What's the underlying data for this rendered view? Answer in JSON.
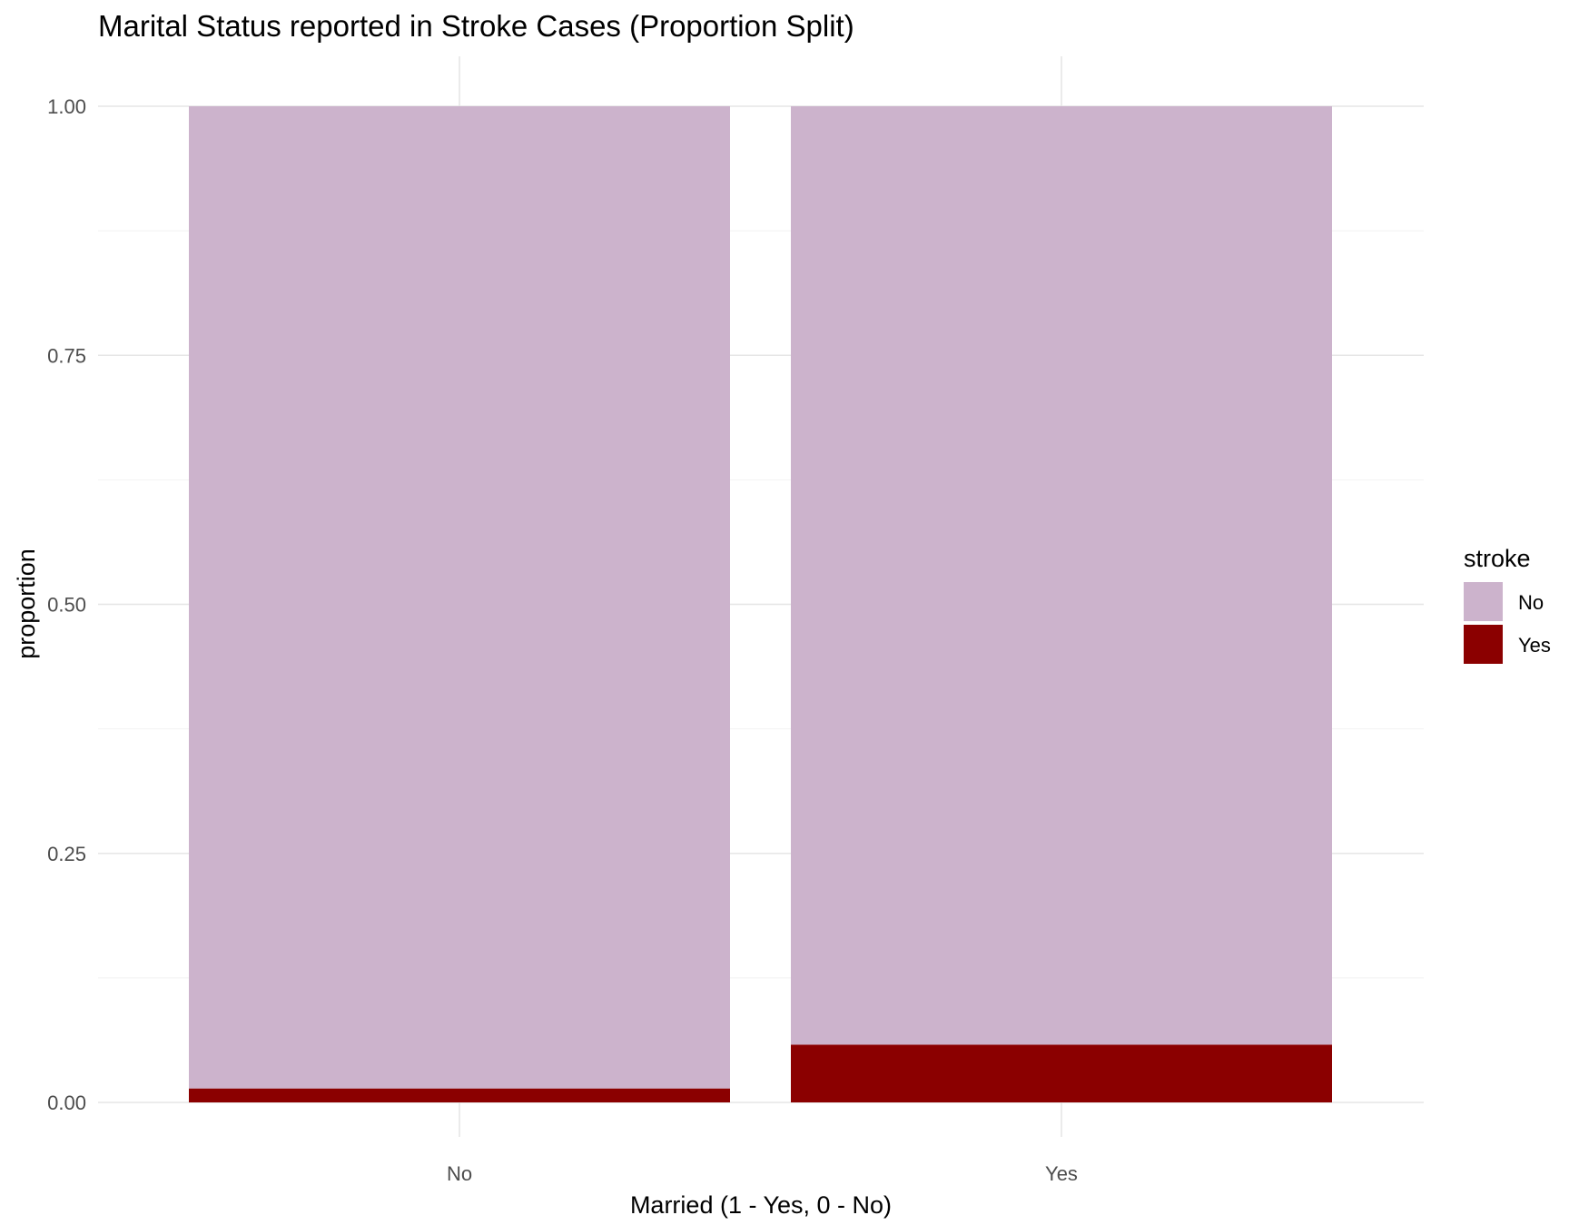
{
  "chart_data": {
    "type": "bar",
    "stacked": true,
    "normalized": true,
    "title": "Marital Status reported in Stroke Cases (Proportion Split)",
    "xlabel": "Married (1 - Yes, 0 - No)",
    "ylabel": "proportion",
    "categories": [
      "No",
      "Yes"
    ],
    "ylim": [
      0,
      1
    ],
    "yticks": [
      0,
      0.25,
      0.5,
      0.75,
      1
    ],
    "ytick_labels": [
      "0.00",
      "0.25",
      "0.50",
      "0.75",
      "1.00"
    ],
    "series": [
      {
        "name": "Yes",
        "color": "#8b0000",
        "values": [
          0.014,
          0.058
        ]
      },
      {
        "name": "No",
        "color": "#ccb3cc",
        "values": [
          0.986,
          0.942
        ]
      }
    ],
    "legend": {
      "title": "stroke",
      "position": "right",
      "entries": [
        {
          "label": "No",
          "color": "#ccb3cc"
        },
        {
          "label": "Yes",
          "color": "#8b0000"
        }
      ]
    },
    "grid": true
  }
}
